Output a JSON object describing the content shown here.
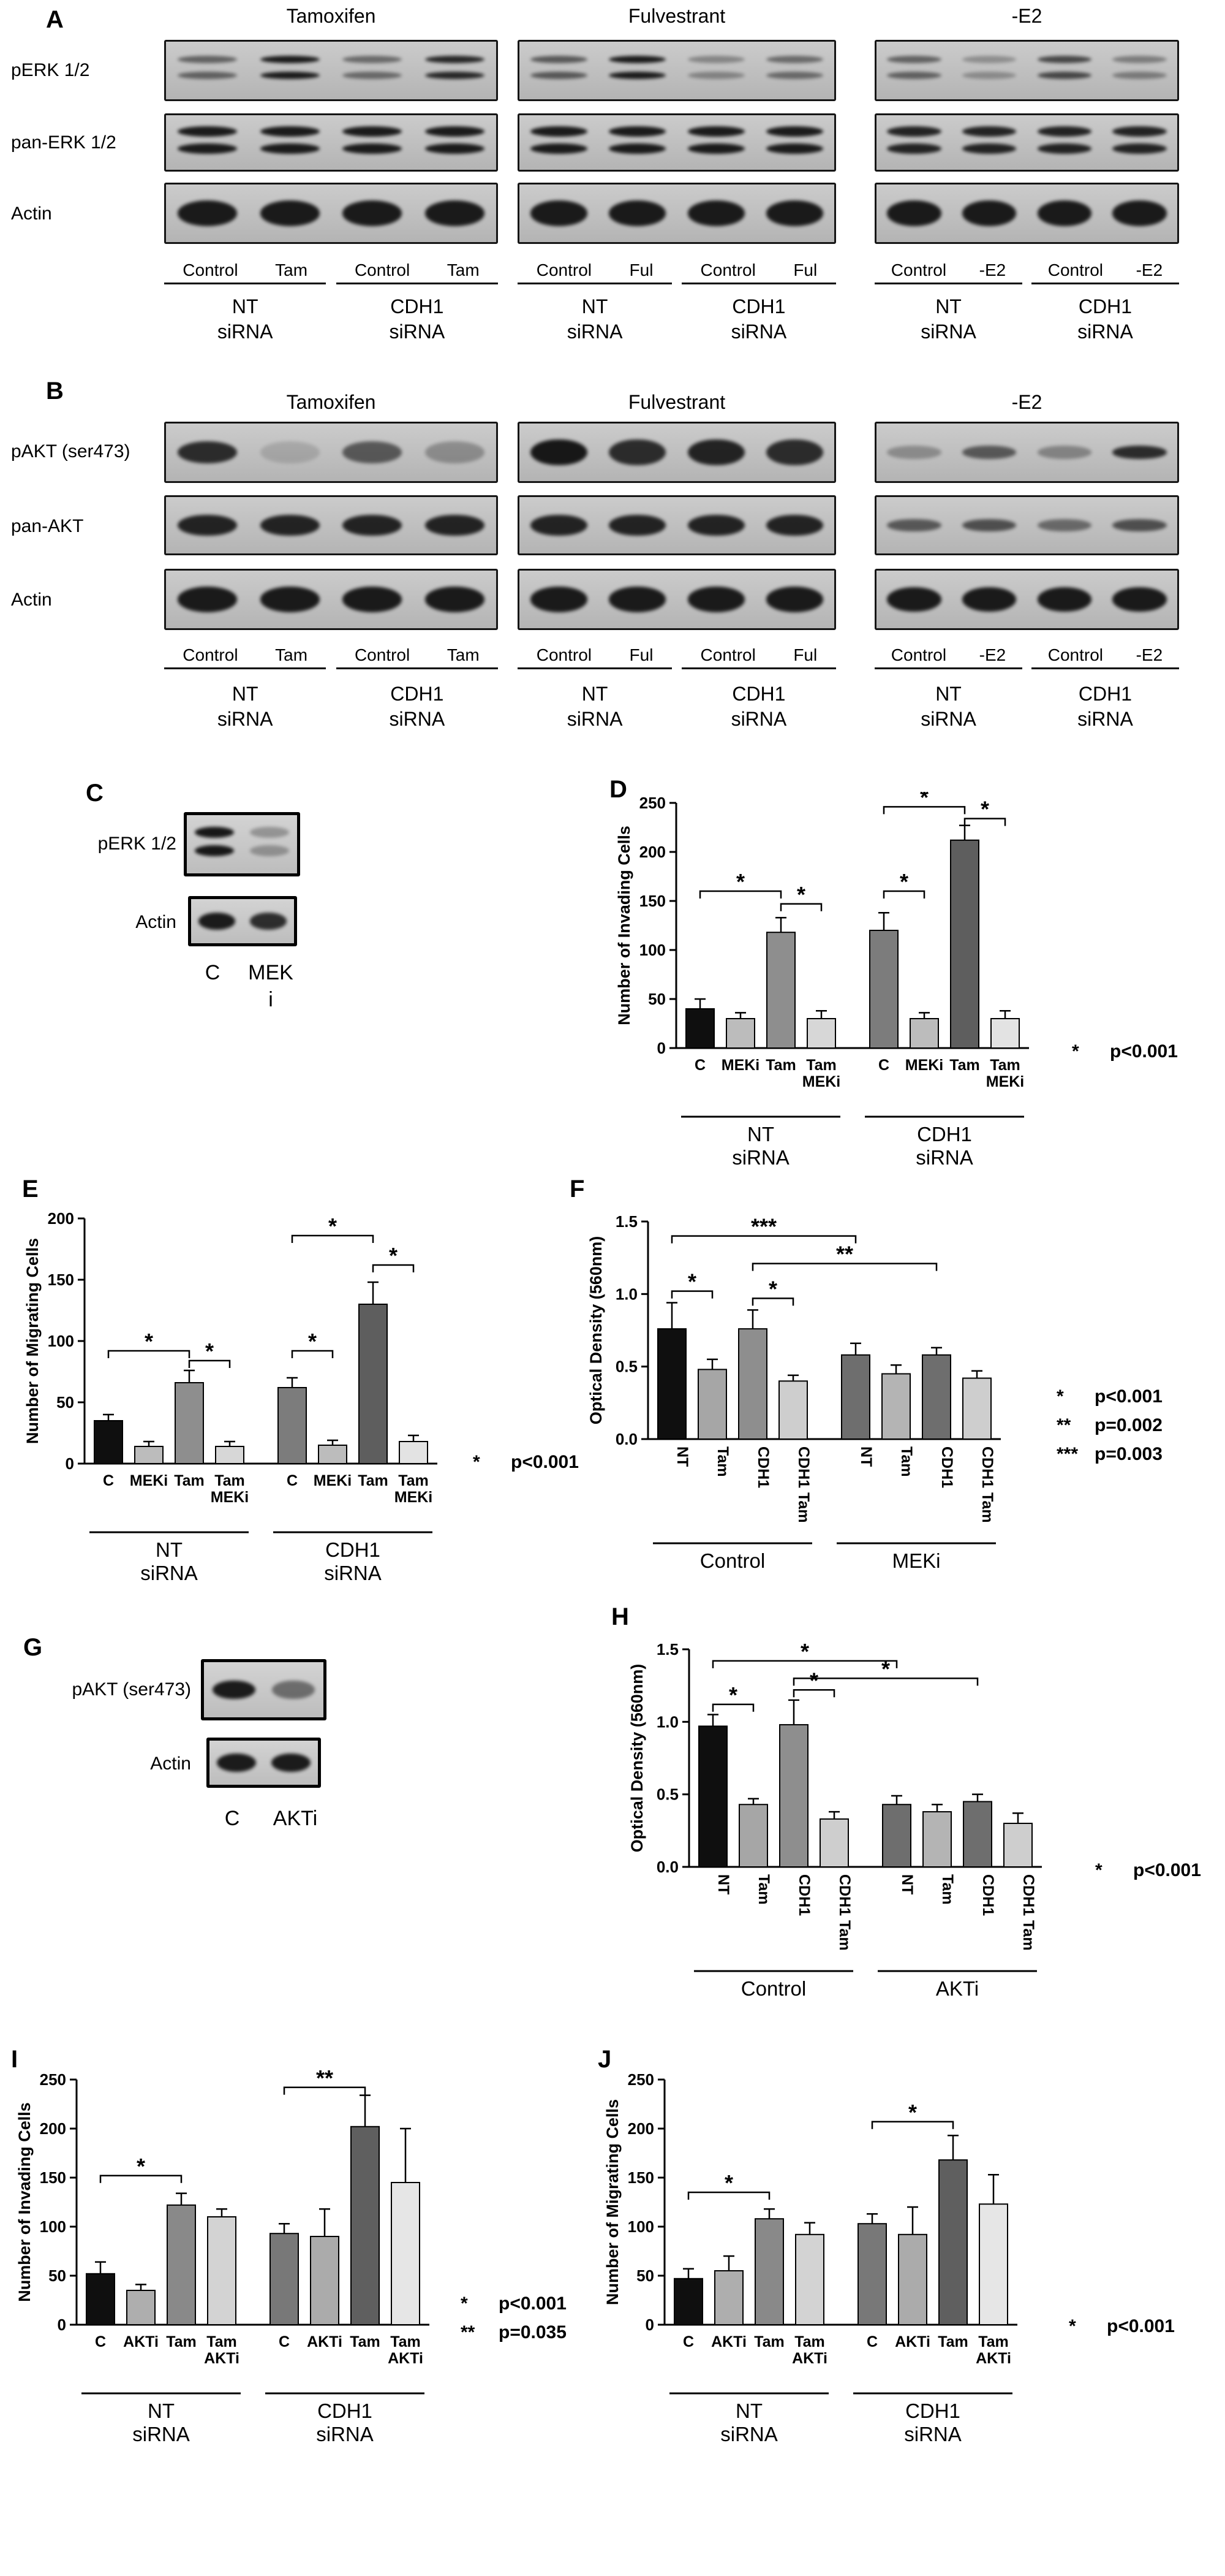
{
  "panels": {
    "a": "A",
    "b": "B",
    "c": "C",
    "d": "D",
    "e": "E",
    "f": "F",
    "g": "G",
    "h": "H",
    "i": "I",
    "j": "J"
  },
  "blot_panel_a": {
    "row_labels": [
      "pERK 1/2",
      "pan-ERK 1/2",
      "Actin"
    ],
    "groups": [
      {
        "title": "Tamoxifen",
        "lanes": [
          "Control",
          "Tam",
          "Control",
          "Tam"
        ],
        "sirna": [
          "NT\nsiRNA",
          "CDH1\nsiRNA"
        ],
        "rows": [
          {
            "doublet": true,
            "thin": true,
            "bands": [
              0.55,
              0.95,
              0.5,
              0.88
            ]
          },
          {
            "doublet": true,
            "bands": [
              0.95,
              0.95,
              0.95,
              0.95
            ]
          },
          {
            "h": 1.15,
            "bands": [
              0.95,
              0.95,
              0.95,
              0.95
            ]
          }
        ]
      },
      {
        "title": "Fulvestrant",
        "lanes": [
          "Control",
          "Ful",
          "Control",
          "Ful"
        ],
        "sirna": [
          "NT\nsiRNA",
          "CDH1\nsiRNA"
        ],
        "rows": [
          {
            "doublet": true,
            "thin": true,
            "bands": [
              0.6,
              0.95,
              0.35,
              0.5
            ]
          },
          {
            "doublet": true,
            "bands": [
              0.95,
              0.95,
              0.95,
              0.95
            ]
          },
          {
            "h": 1.15,
            "bands": [
              0.95,
              0.95,
              0.95,
              0.95
            ]
          }
        ]
      },
      {
        "title": "-E2",
        "lanes": [
          "Control",
          "-E2",
          "Control",
          "-E2"
        ],
        "sirna": [
          "NT\nsiRNA",
          "CDH1\nsiRNA"
        ],
        "rows": [
          {
            "doublet": true,
            "thin": true,
            "bands": [
              0.55,
              0.3,
              0.7,
              0.4
            ]
          },
          {
            "doublet": true,
            "bands": [
              0.9,
              0.9,
              0.9,
              0.9
            ]
          },
          {
            "h": 1.15,
            "bands": [
              0.95,
              0.95,
              0.95,
              0.95
            ]
          }
        ]
      }
    ]
  },
  "blot_panel_b": {
    "row_labels": [
      "pAKT (ser473)",
      "pan-AKT",
      "Actin"
    ],
    "groups": [
      {
        "title": "Tamoxifen",
        "lanes": [
          "Control",
          "Tam",
          "Control",
          "Tam"
        ],
        "sirna": [
          "NT\nsiRNA",
          "CDH1\nsiRNA"
        ],
        "rows": [
          {
            "bands": [
              0.85,
              0.15,
              0.6,
              0.3
            ]
          },
          {
            "bands": [
              0.9,
              0.9,
              0.9,
              0.9
            ]
          },
          {
            "h": 1.15,
            "bands": [
              0.95,
              0.95,
              0.95,
              0.95
            ]
          }
        ]
      },
      {
        "title": "Fulvestrant",
        "lanes": [
          "Control",
          "Ful",
          "Control",
          "Ful"
        ],
        "sirna": [
          "NT\nsiRNA",
          "CDH1\nsiRNA"
        ],
        "rows": [
          {
            "h": 1.2,
            "bands": [
              0.97,
              0.85,
              0.9,
              0.85
            ]
          },
          {
            "bands": [
              0.9,
              0.9,
              0.9,
              0.9
            ]
          },
          {
            "h": 1.15,
            "bands": [
              0.95,
              0.95,
              0.95,
              0.95
            ]
          }
        ]
      },
      {
        "title": "-E2",
        "lanes": [
          "Control",
          "-E2",
          "Control",
          "-E2"
        ],
        "sirna": [
          "NT\nsiRNA",
          "CDH1\nsiRNA"
        ],
        "rows": [
          {
            "h": 0.6,
            "bands": [
              0.3,
              0.6,
              0.35,
              0.85
            ]
          },
          {
            "h": 0.6,
            "bands": [
              0.6,
              0.65,
              0.5,
              0.65
            ]
          },
          {
            "h": 1.1,
            "bands": [
              0.95,
              0.95,
              0.95,
              0.95
            ]
          }
        ]
      }
    ]
  },
  "blot_panel_c": {
    "rows": [
      {
        "label": "pERK 1/2",
        "doublet": true,
        "bands": [
          0.97,
          0.3
        ]
      },
      {
        "label": "Actin",
        "bands": [
          0.95,
          0.85
        ]
      }
    ],
    "lanes": [
      "C",
      "MEK\ni"
    ]
  },
  "blot_panel_g": {
    "rows": [
      {
        "label": "pAKT (ser473)",
        "h": 0.9,
        "bands": [
          0.95,
          0.5
        ]
      },
      {
        "label": "Actin",
        "h": 1.1,
        "bands": [
          0.95,
          0.95
        ]
      }
    ],
    "lanes": [
      "C",
      "AKTi"
    ]
  },
  "chart_data": [
    {
      "panel": "D",
      "type": "bar",
      "ylabel": "Number of Invading Cells",
      "ylim": [
        0,
        250
      ],
      "yticks": [
        "0",
        "50",
        "100",
        "150",
        "200",
        "250"
      ],
      "categories": [
        "C",
        "MEKi",
        "Tam",
        "Tam\nMEKi",
        "C",
        "MEKi",
        "Tam",
        "Tam\nMEKi"
      ],
      "values": [
        40,
        30,
        118,
        30,
        120,
        30,
        212,
        30
      ],
      "errors": [
        10,
        6,
        15,
        8,
        18,
        6,
        15,
        8
      ],
      "colors": [
        "#0f0f0f",
        "#bcbcbc",
        "#8e8e8e",
        "#d7d7d7",
        "#7c7c7c",
        "#bcbcbc",
        "#5e5e5e",
        "#e3e3e3"
      ],
      "rotate_xlabels": false,
      "groups": [
        {
          "label": "NT\nsiRNA",
          "from": 0,
          "to": 3
        },
        {
          "label": "CDH1\nsiRNA",
          "from": 4,
          "to": 7
        }
      ],
      "sig": [
        {
          "from": 0,
          "to": 2,
          "y": 160,
          "text": "*"
        },
        {
          "from": 2,
          "to": 3,
          "y": 147,
          "text": "*"
        },
        {
          "from": 4,
          "to": 5,
          "y": 160,
          "text": "*"
        },
        {
          "from": 4,
          "to": 6,
          "y": 246,
          "text": "*"
        },
        {
          "from": 6,
          "to": 7,
          "y": 234,
          "text": "*"
        }
      ]
    },
    {
      "panel": "E",
      "type": "bar",
      "ylabel": "Number of Migrating Cells",
      "ylim": [
        0,
        200
      ],
      "yticks": [
        "0",
        "50",
        "100",
        "150",
        "200"
      ],
      "categories": [
        "C",
        "MEKi",
        "Tam",
        "Tam\nMEKi",
        "C",
        "MEKi",
        "Tam",
        "Tam\nMEKi"
      ],
      "values": [
        35,
        14,
        66,
        14,
        62,
        15,
        130,
        18
      ],
      "errors": [
        5,
        4,
        10,
        4,
        8,
        4,
        18,
        5
      ],
      "colors": [
        "#0f0f0f",
        "#bcbcbc",
        "#8e8e8e",
        "#d7d7d7",
        "#7c7c7c",
        "#bcbcbc",
        "#5e5e5e",
        "#e3e3e3"
      ],
      "rotate_xlabels": false,
      "groups": [
        {
          "label": "NT\nsiRNA",
          "from": 0,
          "to": 3
        },
        {
          "label": "CDH1\nsiRNA",
          "from": 4,
          "to": 7
        }
      ],
      "sig": [
        {
          "from": 0,
          "to": 2,
          "y": 92,
          "text": "*"
        },
        {
          "from": 2,
          "to": 3,
          "y": 84,
          "text": "*"
        },
        {
          "from": 4,
          "to": 5,
          "y": 92,
          "text": "*"
        },
        {
          "from": 4,
          "to": 6,
          "y": 186,
          "text": "*"
        },
        {
          "from": 6,
          "to": 7,
          "y": 162,
          "text": "*"
        }
      ]
    },
    {
      "panel": "F",
      "type": "bar",
      "ylabel": "Optical Density (560nm)",
      "ylim": [
        0,
        1.5
      ],
      "yticks": [
        "0.0",
        "0.5",
        "1.0",
        "1.5"
      ],
      "categories": [
        "NT",
        "Tam",
        "CDH1",
        "CDH1 Tam",
        "NT",
        "Tam",
        "CDH1",
        "CDH1 Tam"
      ],
      "values": [
        0.76,
        0.48,
        0.76,
        0.4,
        0.58,
        0.45,
        0.58,
        0.42
      ],
      "errors": [
        0.18,
        0.07,
        0.13,
        0.04,
        0.08,
        0.06,
        0.05,
        0.05
      ],
      "colors": [
        "#0f0f0f",
        "#a6a6a6",
        "#8e8e8e",
        "#cecece",
        "#6e6e6e",
        "#b4b4b4",
        "#6e6e6e",
        "#cecece"
      ],
      "rotate_xlabels": true,
      "groups": [
        {
          "label": "Control",
          "from": 0,
          "to": 3
        },
        {
          "label": "MEKi",
          "from": 4,
          "to": 7
        }
      ],
      "sig": [
        {
          "from": 0,
          "to": 1,
          "y": 1.02,
          "text": "*"
        },
        {
          "from": 2,
          "to": 3,
          "y": 0.97,
          "text": "*"
        },
        {
          "from": 0,
          "to": 4,
          "y": 1.4,
          "text": "***"
        },
        {
          "from": 2,
          "to": 6,
          "y": 1.21,
          "text": "**"
        }
      ]
    },
    {
      "panel": "H",
      "type": "bar",
      "ylabel": "Optical Density (560nm)",
      "ylim": [
        0,
        1.5
      ],
      "yticks": [
        "0.0",
        "0.5",
        "1.0",
        "1.5"
      ],
      "categories": [
        "NT",
        "Tam",
        "CDH1",
        "CDH1 Tam",
        "NT",
        "Tam",
        "CDH1",
        "CDH1 Tam"
      ],
      "values": [
        0.97,
        0.43,
        0.98,
        0.33,
        0.43,
        0.38,
        0.45,
        0.3
      ],
      "errors": [
        0.08,
        0.04,
        0.17,
        0.05,
        0.06,
        0.05,
        0.05,
        0.07
      ],
      "colors": [
        "#0f0f0f",
        "#a6a6a6",
        "#8e8e8e",
        "#cecece",
        "#6e6e6e",
        "#b4b4b4",
        "#6e6e6e",
        "#cecece"
      ],
      "rotate_xlabels": true,
      "groups": [
        {
          "label": "Control",
          "from": 0,
          "to": 3
        },
        {
          "label": "AKTi",
          "from": 4,
          "to": 7
        }
      ],
      "sig": [
        {
          "from": 0,
          "to": 1,
          "y": 1.12,
          "text": "*"
        },
        {
          "from": 2,
          "to": 3,
          "y": 1.22,
          "text": "*"
        },
        {
          "from": 0,
          "to": 4,
          "y": 1.42,
          "text": "*"
        },
        {
          "from": 2,
          "to": 6,
          "y": 1.3,
          "text": "*"
        }
      ]
    },
    {
      "panel": "I",
      "type": "bar",
      "ylabel": "Number of Invading Cells",
      "ylim": [
        0,
        250
      ],
      "yticks": [
        "0",
        "50",
        "100",
        "150",
        "200",
        "250"
      ],
      "categories": [
        "C",
        "AKTi",
        "Tam",
        "Tam\nAKTi",
        "C",
        "AKTi",
        "Tam",
        "Tam\nAKTi"
      ],
      "values": [
        52,
        35,
        122,
        110,
        93,
        90,
        202,
        145
      ],
      "errors": [
        12,
        6,
        12,
        8,
        10,
        28,
        32,
        55
      ],
      "colors": [
        "#0f0f0f",
        "#aeaeae",
        "#898989",
        "#d3d3d3",
        "#787878",
        "#ababab",
        "#5f5f5f",
        "#e6e6e6"
      ],
      "rotate_xlabels": false,
      "groups": [
        {
          "label": "NT\nsiRNA",
          "from": 0,
          "to": 3
        },
        {
          "label": "CDH1\nsiRNA",
          "from": 4,
          "to": 7
        }
      ],
      "sig": [
        {
          "from": 0,
          "to": 2,
          "y": 152,
          "text": "*"
        },
        {
          "from": 4,
          "to": 6,
          "y": 242,
          "text": "**"
        }
      ]
    },
    {
      "panel": "J",
      "type": "bar",
      "ylabel": "Number of Migrating Cells",
      "ylim": [
        0,
        250
      ],
      "yticks": [
        "0",
        "50",
        "100",
        "150",
        "200",
        "250"
      ],
      "categories": [
        "C",
        "AKTi",
        "Tam",
        "Tam\nAKTi",
        "C",
        "AKTi",
        "Tam",
        "Tam\nAKTi"
      ],
      "values": [
        47,
        55,
        108,
        92,
        103,
        92,
        168,
        123
      ],
      "errors": [
        10,
        15,
        10,
        12,
        10,
        28,
        25,
        30
      ],
      "colors": [
        "#0f0f0f",
        "#aeaeae",
        "#898989",
        "#d3d3d3",
        "#787878",
        "#ababab",
        "#5f5f5f",
        "#e6e6e6"
      ],
      "rotate_xlabels": false,
      "groups": [
        {
          "label": "NT\nsiRNA",
          "from": 0,
          "to": 3
        },
        {
          "label": "CDH1\nsiRNA",
          "from": 4,
          "to": 7
        }
      ],
      "sig": [
        {
          "from": 0,
          "to": 2,
          "y": 135,
          "text": "*"
        },
        {
          "from": 4,
          "to": 6,
          "y": 207,
          "text": "*"
        }
      ]
    }
  ],
  "notes": {
    "D": [
      {
        "stars": "*",
        "text": "p<0.001"
      }
    ],
    "E": [
      {
        "stars": "*",
        "text": "p<0.001"
      }
    ],
    "F": [
      {
        "stars": "*",
        "text": "p<0.001"
      },
      {
        "stars": "**",
        "text": "p=0.002"
      },
      {
        "stars": "***",
        "text": "p=0.003"
      }
    ],
    "H": [
      {
        "stars": "*",
        "text": "p<0.001"
      }
    ],
    "I": [
      {
        "stars": "*",
        "text": "p<0.001"
      },
      {
        "stars": "**",
        "text": "p=0.035"
      }
    ],
    "J": [
      {
        "stars": "*",
        "text": "p<0.001"
      }
    ]
  }
}
